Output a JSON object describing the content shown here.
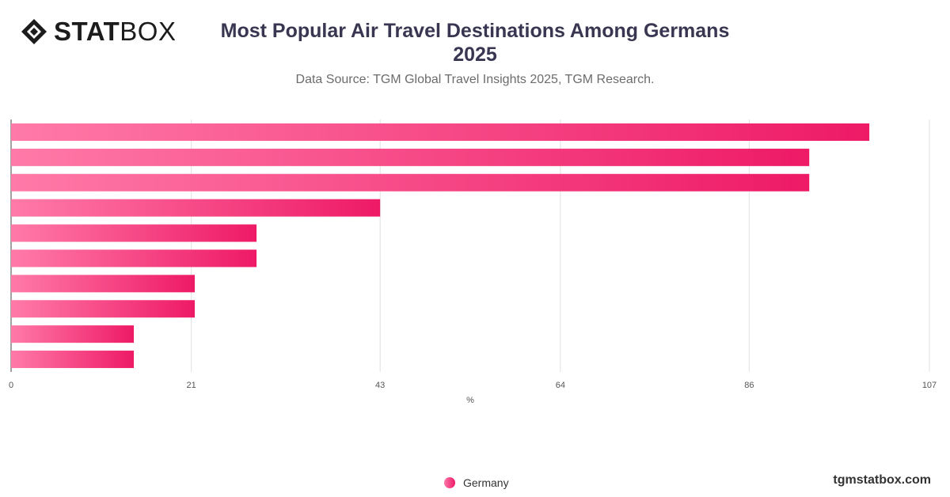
{
  "brand": {
    "logo_bold": "STAT",
    "logo_light": "BOX",
    "site": "tgmstatbox.com"
  },
  "title_line1": "Most Popular Air Travel Destinations Among Germans",
  "title_line2": "2025",
  "subtitle": "Data Source: TGM Global Travel Insights 2025, TGM Research.",
  "colors": {
    "bar_start": "#ff7aa8",
    "bar_end": "#ee1a66",
    "grid": "#e0e0e0",
    "title": "#383651"
  },
  "chart_data": {
    "type": "bar",
    "orientation": "horizontal",
    "categories": [
      "",
      "",
      "",
      "",
      "",
      "",
      "",
      "",
      "",
      ""
    ],
    "series": [
      {
        "name": "Germany",
        "values": [
          100,
          93,
          93,
          43,
          28.6,
          28.6,
          21.4,
          21.4,
          14.3,
          14.3
        ]
      }
    ],
    "xlabel": "%",
    "xlim": [
      0,
      107
    ],
    "xticks": [
      0,
      21,
      43,
      64,
      86,
      107
    ],
    "grid": true,
    "legend": "bottom-center"
  }
}
